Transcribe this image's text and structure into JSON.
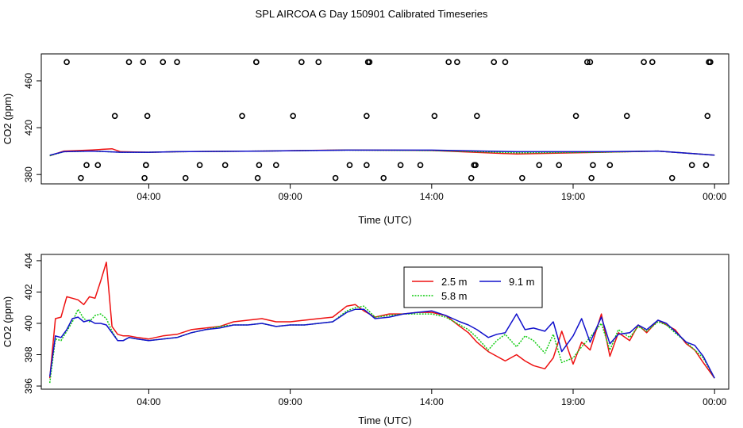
{
  "title": "SPL AIRCOA G  Day 150901  Calibrated Timeseries",
  "colors": {
    "2.5 m": "#ee1111",
    "5.8 m": "#11cc11",
    "9.1 m": "#1111cc"
  },
  "chart_data": [
    {
      "type": "line",
      "xlabel": "Time (UTC)",
      "ylabel": "CO2 (ppm)",
      "xlim": [
        0.2,
        24.5
      ],
      "ylim": [
        372,
        483
      ],
      "x_ticks": [
        4,
        9,
        14,
        19,
        24
      ],
      "x_tick_labels": [
        "04:00",
        "09:00",
        "14:00",
        "19:00",
        "00:00"
      ],
      "y_ticks": [
        380,
        420,
        460
      ],
      "grid": false,
      "legend": "none",
      "outliers_circles": {
        "x": [
          1.1,
          1.6,
          1.8,
          2.2,
          2.8,
          3.3,
          3.8,
          3.85,
          3.9,
          3.9,
          3.95,
          4.5,
          5,
          5.3,
          5.8,
          6.7,
          7.3,
          7.8,
          7.8,
          7.85,
          7.9,
          8.5,
          9.1,
          9.4,
          10,
          10.6,
          11.1,
          11.7,
          11.7,
          11.75,
          11.8,
          12.3,
          12.9,
          13.6,
          14.1,
          14.6,
          14.9,
          15.4,
          15.5,
          15.55,
          15.6,
          16.2,
          16.6,
          17.2,
          17.8,
          18.5,
          19.1,
          19.5,
          19.6,
          19.65,
          19.7,
          20.3,
          20.9,
          21.5,
          21.8,
          22.5,
          23.2,
          23.7,
          23.75,
          23.8,
          23.85
        ]
      },
      "series": [
        {
          "name": "2.5 m",
          "x": [
            0.5,
            1,
            2,
            2.7,
            3,
            4,
            5,
            8,
            11,
            14,
            17,
            20,
            22,
            24
          ],
          "y": [
            396,
            400,
            401,
            402,
            399.5,
            399,
            399.5,
            400,
            401,
            400.5,
            397.5,
            399,
            400,
            396.5
          ]
        },
        {
          "name": "5.8 m",
          "x": [
            0.5,
            1,
            2,
            3,
            4,
            5,
            8,
            11,
            14,
            17,
            20,
            22,
            24
          ],
          "y": [
            396,
            399.5,
            400,
            399,
            399,
            399.5,
            400,
            400.8,
            400.5,
            398.5,
            399,
            400,
            396.5
          ]
        },
        {
          "name": "9.1 m",
          "x": [
            0.5,
            1,
            2,
            3,
            4,
            5,
            8,
            11,
            14,
            17,
            20,
            22,
            24
          ],
          "y": [
            396.5,
            399.5,
            400,
            399,
            399,
            399.5,
            400,
            400.8,
            400.8,
            399.5,
            399.5,
            400,
            396.5
          ]
        }
      ]
    },
    {
      "type": "line",
      "xlabel": "Time (UTC)",
      "ylabel": "CO2 (ppm)",
      "xlim": [
        0.2,
        24.5
      ],
      "ylim": [
        395.8,
        404.4
      ],
      "x_ticks": [
        4,
        9,
        14,
        19,
        24
      ],
      "x_tick_labels": [
        "04:00",
        "09:00",
        "14:00",
        "19:00",
        "00:00"
      ],
      "y_ticks": [
        396,
        398,
        400,
        402,
        404
      ],
      "grid": false,
      "legend": "top-center",
      "series": [
        {
          "name": "2.5 m",
          "x": [
            0.5,
            0.7,
            0.9,
            1.1,
            1.3,
            1.5,
            1.7,
            1.9,
            2.1,
            2.3,
            2.5,
            2.7,
            2.9,
            3.1,
            3.3,
            3.6,
            4,
            4.5,
            5,
            5.5,
            6,
            6.5,
            7,
            7.5,
            8,
            8.5,
            9,
            9.5,
            10,
            10.5,
            11,
            11.3,
            11.6,
            12,
            12.5,
            13,
            13.5,
            14,
            14.5,
            15,
            15.3,
            15.6,
            16,
            16.3,
            16.6,
            17,
            17.3,
            17.6,
            18,
            18.3,
            18.6,
            19,
            19.3,
            19.6,
            20,
            20.3,
            20.6,
            21,
            21.3,
            21.6,
            22,
            22.3,
            22.6,
            23,
            23.3,
            23.6,
            24
          ],
          "y": [
            396.5,
            400.3,
            400.4,
            401.7,
            401.6,
            401.5,
            401.2,
            401.7,
            401.6,
            402.7,
            403.9,
            399.8,
            399.3,
            399.2,
            399.2,
            399.1,
            399,
            399.2,
            399.3,
            399.6,
            399.7,
            399.8,
            400.1,
            400.2,
            400.3,
            400.1,
            400.1,
            400.2,
            400.3,
            400.4,
            401.1,
            401.2,
            400.8,
            400.4,
            400.6,
            400.6,
            400.7,
            400.7,
            400.5,
            399.8,
            399.4,
            398.8,
            398.2,
            397.9,
            397.6,
            398,
            397.6,
            397.3,
            397.1,
            397.8,
            399.5,
            397.4,
            398.8,
            398.3,
            400.6,
            397.9,
            399.4,
            398.9,
            399.9,
            399.4,
            400.2,
            399.9,
            399.6,
            398.7,
            398.3,
            397.5,
            396.5
          ]
        },
        {
          "name": "5.8 m",
          "x": [
            0.5,
            0.7,
            0.9,
            1.1,
            1.3,
            1.5,
            1.7,
            1.9,
            2.1,
            2.3,
            2.5,
            2.7,
            2.9,
            3.1,
            3.3,
            3.6,
            4,
            4.5,
            5,
            5.5,
            6,
            6.5,
            7,
            7.5,
            8,
            8.5,
            9,
            9.5,
            10,
            10.5,
            11,
            11.3,
            11.6,
            12,
            12.5,
            13,
            13.5,
            14,
            14.5,
            15,
            15.3,
            15.6,
            16,
            16.3,
            16.6,
            17,
            17.3,
            17.6,
            18,
            18.3,
            18.6,
            19,
            19.3,
            19.6,
            20,
            20.3,
            20.6,
            21,
            21.3,
            21.6,
            22,
            22.3,
            22.6,
            23,
            23.3,
            23.6,
            24
          ],
          "y": [
            396.2,
            399.0,
            398.9,
            399.5,
            400.1,
            400.9,
            400.3,
            400.1,
            400.5,
            400.6,
            400.3,
            399.5,
            398.9,
            398.9,
            399.1,
            399,
            398.9,
            399,
            399.1,
            399.4,
            399.6,
            399.8,
            399.9,
            399.9,
            400,
            399.8,
            399.9,
            399.9,
            400,
            400.1,
            400.8,
            401,
            401.1,
            400.4,
            400.5,
            400.6,
            400.6,
            400.6,
            400.4,
            399.9,
            399.6,
            399.1,
            398.3,
            398.9,
            399.3,
            398.5,
            399.2,
            398.9,
            398.1,
            399.3,
            397.5,
            397.8,
            398.5,
            399.1,
            400,
            398.3,
            399.6,
            399.1,
            399.8,
            399.5,
            400.1,
            399.9,
            399.4,
            398.8,
            398.3,
            397.8,
            396.5
          ]
        },
        {
          "name": "9.1 m",
          "x": [
            0.5,
            0.7,
            0.9,
            1.1,
            1.3,
            1.5,
            1.7,
            1.9,
            2.1,
            2.3,
            2.5,
            2.7,
            2.9,
            3.1,
            3.3,
            3.6,
            4,
            4.5,
            5,
            5.5,
            6,
            6.5,
            7,
            7.5,
            8,
            8.5,
            9,
            9.5,
            10,
            10.5,
            11,
            11.3,
            11.6,
            12,
            12.5,
            13,
            13.5,
            14,
            14.5,
            15,
            15.3,
            15.6,
            16,
            16.3,
            16.6,
            17,
            17.3,
            17.6,
            18,
            18.3,
            18.6,
            19,
            19.3,
            19.6,
            20,
            20.3,
            20.6,
            21,
            21.3,
            21.6,
            22,
            22.3,
            22.6,
            23,
            23.3,
            23.6,
            24
          ],
          "y": [
            396.6,
            399.2,
            399.1,
            399.6,
            400.3,
            400.4,
            400.1,
            400.2,
            400.0,
            400.0,
            399.9,
            399.4,
            398.9,
            398.9,
            399.1,
            399,
            398.9,
            399,
            399.1,
            399.4,
            399.6,
            399.7,
            399.9,
            399.9,
            400,
            399.8,
            399.9,
            399.9,
            400,
            400.1,
            400.7,
            400.9,
            400.9,
            400.3,
            400.4,
            400.6,
            400.7,
            400.8,
            400.5,
            400.1,
            399.9,
            399.6,
            399.1,
            399.3,
            399.4,
            400.6,
            399.6,
            399.7,
            399.5,
            400.1,
            398.2,
            399.2,
            400.3,
            398.8,
            400.4,
            398.7,
            399.3,
            399.4,
            399.9,
            399.6,
            400.2,
            400,
            399.5,
            398.8,
            398.6,
            397.9,
            396.5
          ]
        }
      ]
    }
  ]
}
